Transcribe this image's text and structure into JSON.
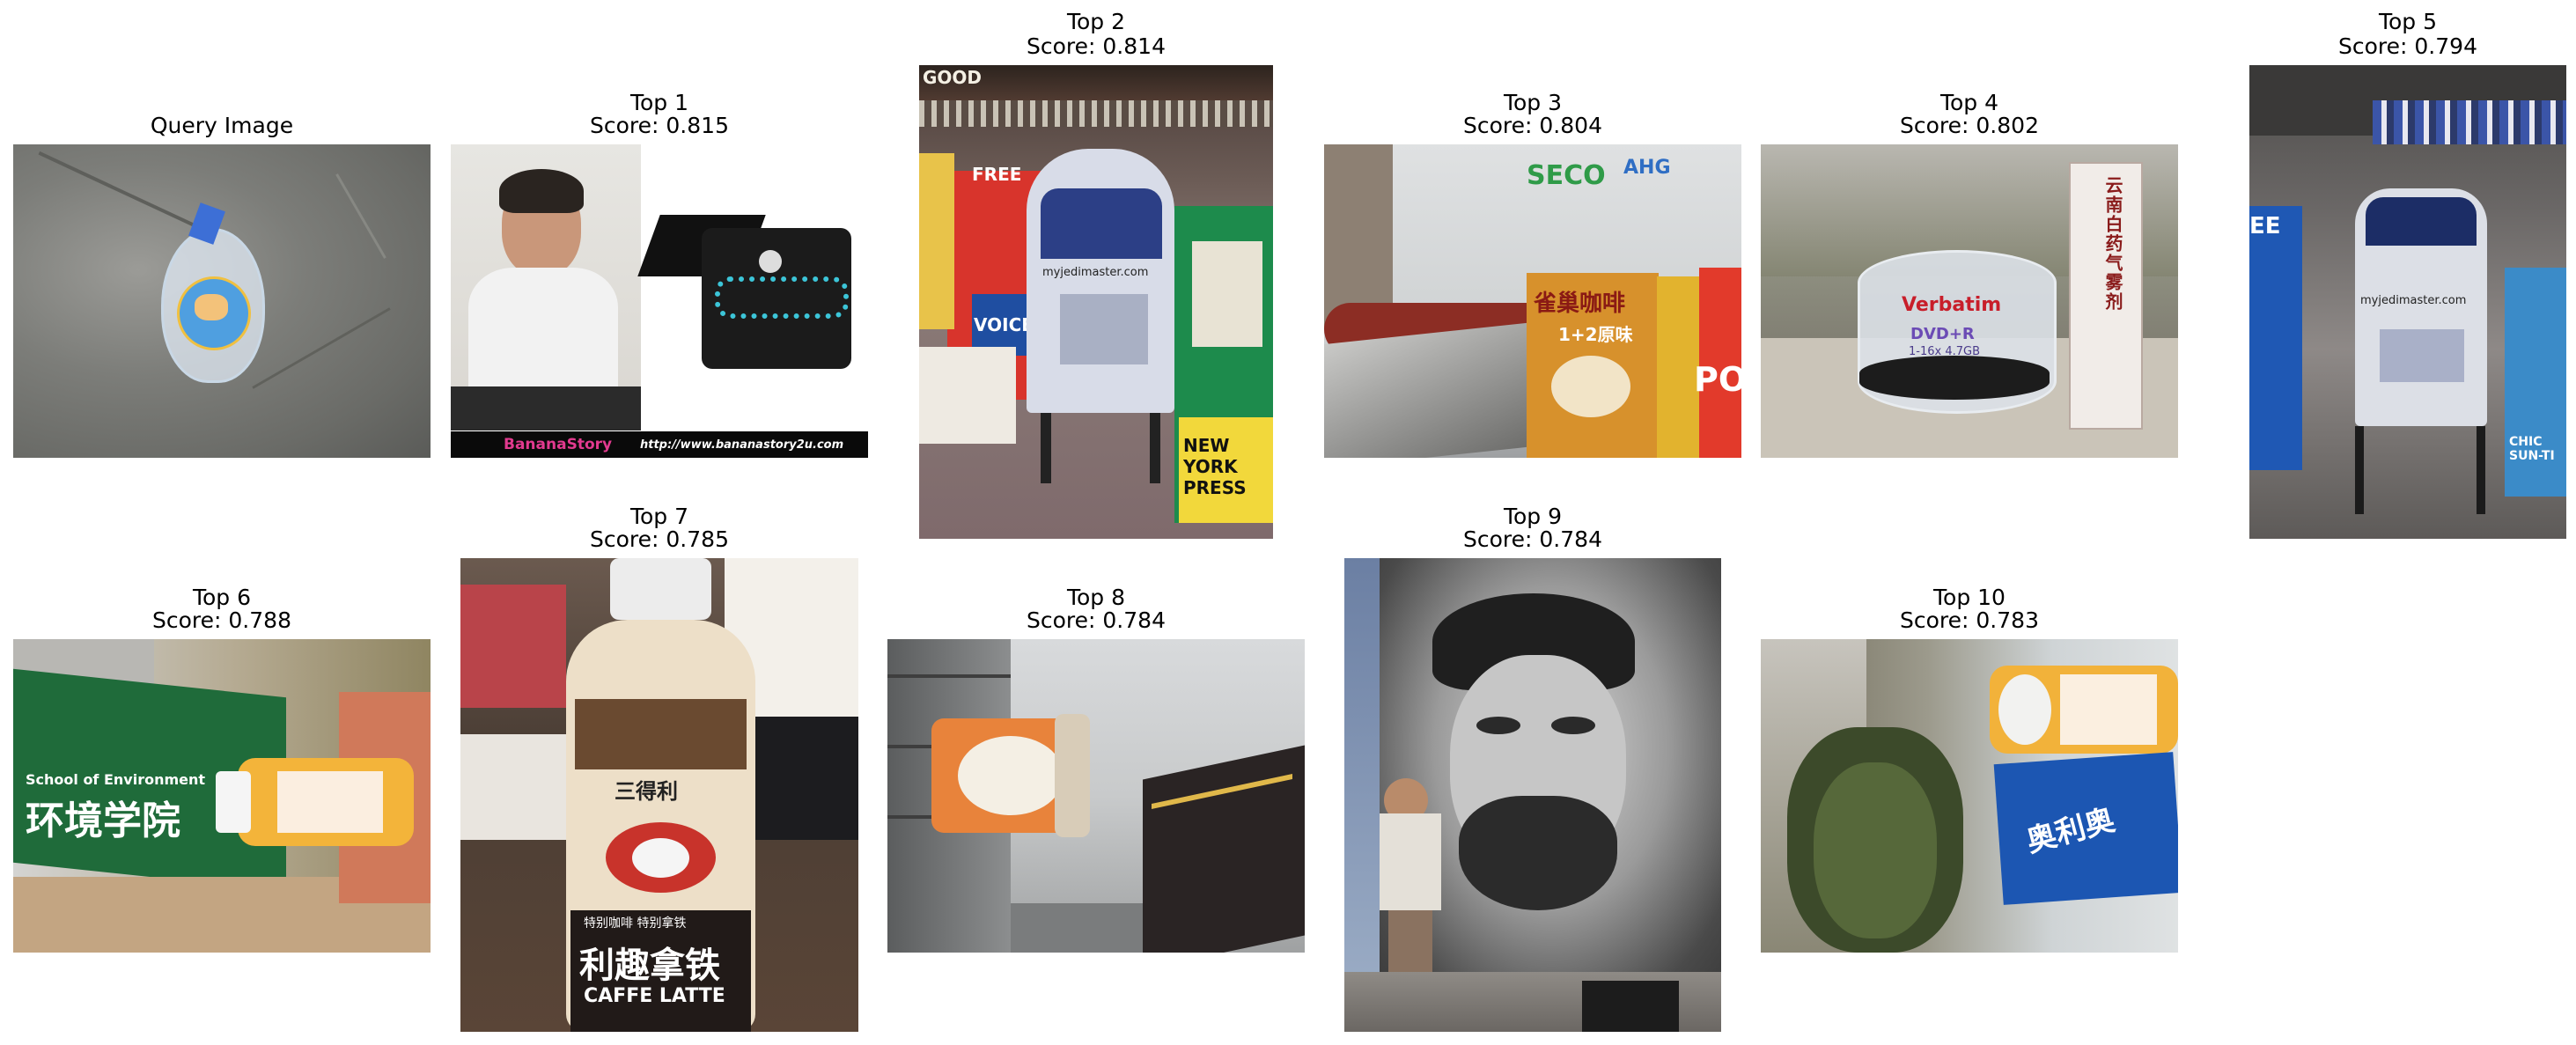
{
  "query": {
    "title": "Query Image"
  },
  "results": [
    {
      "title": "Top 1",
      "score": "Score: 0.815",
      "texts": {
        "banner_left": "BananaStory",
        "banner_right": "http://www.bananastory2u.com"
      }
    },
    {
      "title": "Top 2",
      "score": "Score: 0.814",
      "texts": {
        "free": "FREE",
        "voice": "VOICE",
        "brand": "myjedimaster.com",
        "nyp": "NEW YORK PRESS",
        "good": "GOOD"
      }
    },
    {
      "title": "Top 3",
      "score": "Score: 0.804",
      "texts": {
        "seco": "SECO",
        "ahg": "AHG",
        "coffee": "雀巢咖啡",
        "flavor": "1+2原味",
        "poc": "POC"
      }
    },
    {
      "title": "Top 4",
      "score": "Score: 0.802",
      "texts": {
        "verbatim": "Verbatim",
        "dvd": "DVD+R",
        "speed": "1-16x 4.7GB",
        "box": "云南白药气雾剂"
      }
    },
    {
      "title": "Top 5",
      "score": "Score: 0.794",
      "texts": {
        "brand": "myjedimaster.com",
        "free": "EE",
        "chic": "CHIC SUN-TI"
      }
    },
    {
      "title": "Top 6",
      "score": "Score: 0.788",
      "texts": {
        "school": "School of Environment",
        "chinese": "环境学院"
      }
    },
    {
      "title": "Top 7",
      "score": "Score: 0.785",
      "texts": {
        "brand": "三得利",
        "line1": "特别咖啡 特别拿铁",
        "chinese": "利趣拿铁",
        "caffe": "CAFFE LATTE"
      }
    },
    {
      "title": "Top 8",
      "score": "Score: 0.784"
    },
    {
      "title": "Top 9",
      "score": "Score: 0.784"
    },
    {
      "title": "Top 10",
      "score": "Score: 0.783",
      "texts": {
        "box": "奥利奥"
      }
    }
  ],
  "colors": {
    "background": "#ffffff",
    "caption": "#000000"
  }
}
